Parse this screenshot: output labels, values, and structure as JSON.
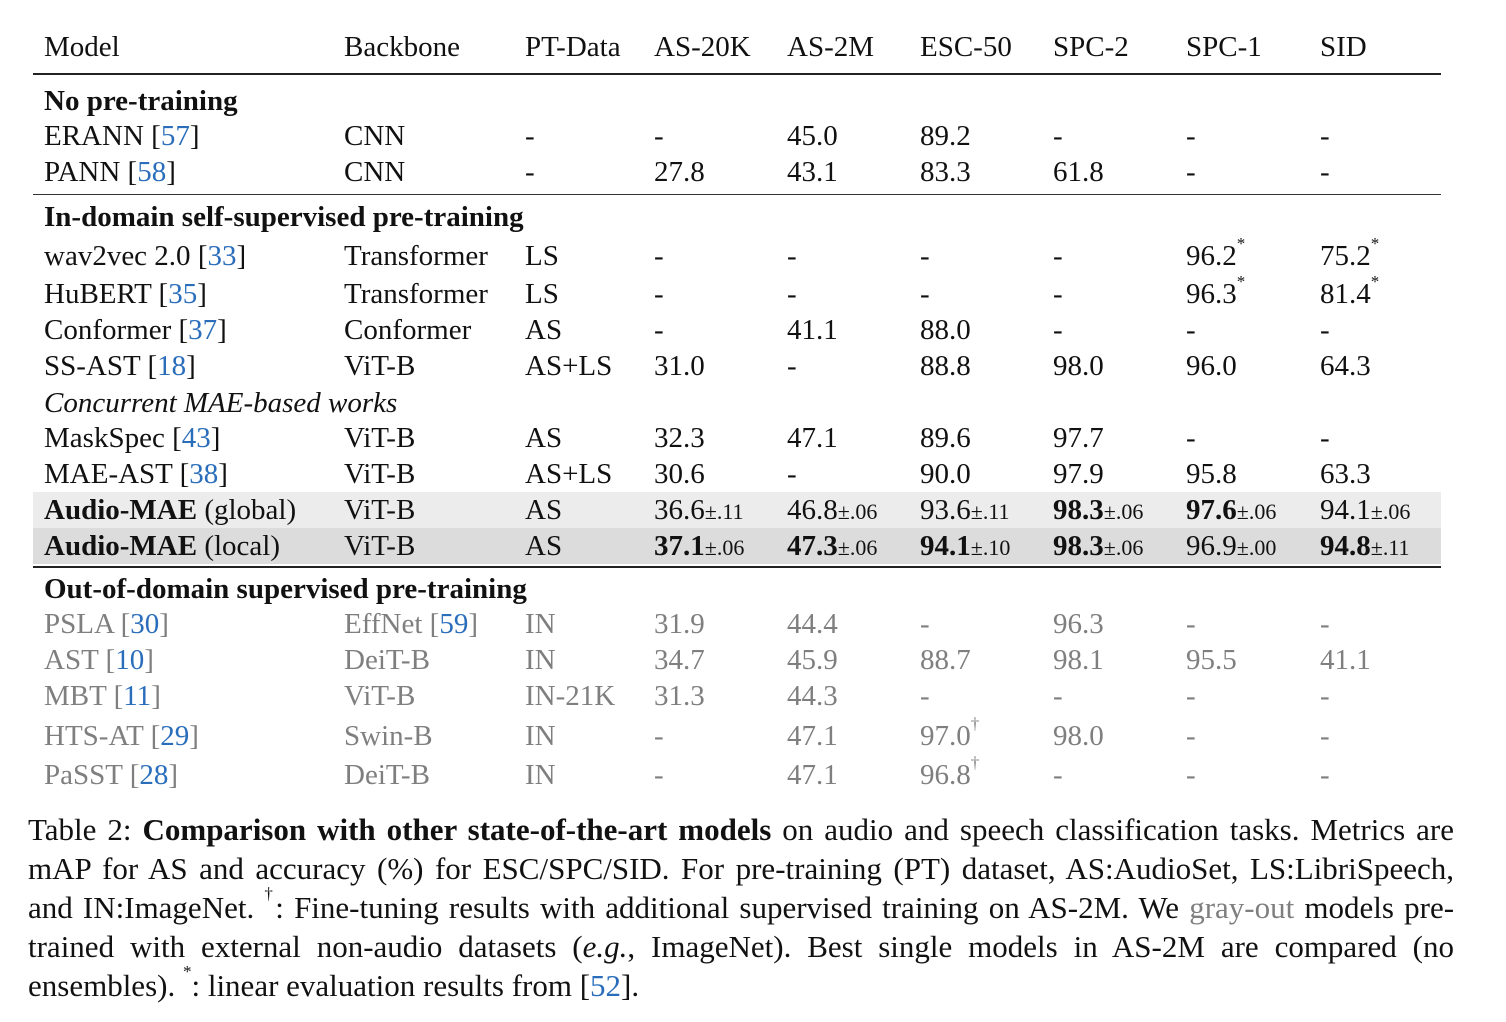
{
  "colors": {
    "link": "#2a6ebb",
    "gray_text": "#7f7f7f",
    "shade_global": "#ececec",
    "shade_local": "#dcdcdc"
  },
  "table": {
    "headers": [
      "Model",
      "Backbone",
      "PT-Data",
      "AS-20K",
      "AS-2M",
      "ESC-50",
      "SPC-2",
      "SPC-1",
      "SID"
    ],
    "rows": [
      {
        "type": "group",
        "label": "No pre-training"
      },
      {
        "type": "row",
        "model": "ERANN",
        "ref": "57",
        "backbone": "CNN",
        "pt": "-",
        "vals": [
          "-",
          "45.0",
          "89.2",
          "-",
          "-",
          "-"
        ]
      },
      {
        "type": "row",
        "model": "PANN",
        "ref": "58",
        "backbone": "CNN",
        "pt": "-",
        "vals": [
          "27.8",
          "43.1",
          "83.3",
          "61.8",
          "-",
          "-"
        ]
      },
      {
        "type": "group",
        "label": "In-domain self-supervised pre-training"
      },
      {
        "type": "row",
        "model": "wav2vec 2.0",
        "ref": "33",
        "backbone": "Transformer",
        "pt": "LS",
        "vals": [
          "-",
          "-",
          "-",
          "-",
          {
            "v": "96.2",
            "sup": "*"
          },
          {
            "v": "75.2",
            "sup": "*"
          }
        ]
      },
      {
        "type": "row",
        "model": "HuBERT",
        "ref": "35",
        "backbone": "Transformer",
        "pt": "LS",
        "vals": [
          "-",
          "-",
          "-",
          "-",
          {
            "v": "96.3",
            "sup": "*"
          },
          {
            "v": "81.4",
            "sup": "*"
          }
        ]
      },
      {
        "type": "row",
        "model": "Conformer",
        "ref": "37",
        "backbone": "Conformer",
        "pt": "AS",
        "vals": [
          "-",
          "41.1",
          "88.0",
          "-",
          "-",
          "-"
        ]
      },
      {
        "type": "row",
        "model": "SS-AST",
        "ref": "18",
        "backbone": "ViT-B",
        "pt": "AS+LS",
        "vals": [
          "31.0",
          "-",
          "88.8",
          "98.0",
          "96.0",
          "64.3"
        ]
      },
      {
        "type": "subgroup",
        "label": "Concurrent MAE-based works"
      },
      {
        "type": "row",
        "model": "MaskSpec",
        "ref": "43",
        "backbone": "ViT-B",
        "pt": "AS",
        "vals": [
          "32.3",
          "47.1",
          "89.6",
          "97.7",
          "-",
          "-"
        ]
      },
      {
        "type": "row",
        "model": "MAE-AST",
        "ref": "38",
        "backbone": "ViT-B",
        "pt": "AS+LS",
        "vals": [
          "30.6",
          "-",
          "90.0",
          "97.9",
          "95.8",
          "63.3"
        ]
      },
      {
        "type": "row",
        "shade": 1,
        "model": "Audio-MAE",
        "model_bold": true,
        "suffix": "(global)",
        "backbone": "ViT-B",
        "pt": "AS",
        "vals": [
          {
            "v": "36.6",
            "pm": "±.11"
          },
          {
            "v": "46.8",
            "pm": "±.06"
          },
          {
            "v": "93.6",
            "pm": "±.11"
          },
          {
            "v": "98.3",
            "pm": "±.06",
            "b": true
          },
          {
            "v": "97.6",
            "pm": "±.06",
            "b": true
          },
          {
            "v": "94.1",
            "pm": "±.06"
          }
        ]
      },
      {
        "type": "row",
        "shade": 2,
        "model": "Audio-MAE",
        "model_bold": true,
        "suffix": "(local)",
        "backbone": "ViT-B",
        "pt": "AS",
        "vals": [
          {
            "v": "37.1",
            "pm": "±.06",
            "b": true
          },
          {
            "v": "47.3",
            "pm": "±.06",
            "b": true
          },
          {
            "v": "94.1",
            "pm": "±.10",
            "b": true
          },
          {
            "v": "98.3",
            "pm": "±.06",
            "b": true
          },
          {
            "v": "96.9",
            "pm": "±.00"
          },
          {
            "v": "94.8",
            "pm": "±.11",
            "b": true
          }
        ]
      },
      {
        "type": "group",
        "label": "Out-of-domain supervised pre-training"
      },
      {
        "type": "row",
        "gray": true,
        "model": "PSLA",
        "ref": "30",
        "backbone": "EffNet",
        "backbone_ref": "59",
        "pt": "IN",
        "vals": [
          "31.9",
          "44.4",
          "-",
          "96.3",
          "-",
          "-"
        ]
      },
      {
        "type": "row",
        "gray": true,
        "model": "AST",
        "ref": "10",
        "backbone": "DeiT-B",
        "pt": "IN",
        "vals": [
          "34.7",
          "45.9",
          "88.7",
          "98.1",
          "95.5",
          "41.1"
        ]
      },
      {
        "type": "row",
        "gray": true,
        "model": "MBT",
        "ref": "11",
        "backbone": "ViT-B",
        "pt": "IN-21K",
        "vals": [
          "31.3",
          "44.3",
          "-",
          "-",
          "-",
          "-"
        ]
      },
      {
        "type": "row",
        "gray": true,
        "model": "HTS-AT",
        "ref": "29",
        "backbone": "Swin-B",
        "pt": "IN",
        "vals": [
          "-",
          "47.1",
          {
            "v": "97.0",
            "sup": "†"
          },
          "98.0",
          "-",
          "-"
        ]
      },
      {
        "type": "row",
        "gray": true,
        "model": "PaSST",
        "ref": "28",
        "backbone": "DeiT-B",
        "pt": "IN",
        "vals": [
          "-",
          "47.1",
          {
            "v": "96.8",
            "sup": "†"
          },
          "-",
          "-",
          "-"
        ]
      }
    ]
  },
  "caption": [
    {
      "t": "Table 2:  "
    },
    {
      "t": "Comparison with other state-of-the-art models",
      "s": "b"
    },
    {
      "t": " on audio and speech classification tasks. Metrics are mAP for AS and accuracy (%) for ESC/SPC/SID. For pre-training (PT) dataset, AS:AudioSet, LS:LibriSpeech, and IN:ImageNet. "
    },
    {
      "t": "†",
      "s": "sup"
    },
    {
      "t": ": Fine-tuning results with additional supervised training on AS-2M. We "
    },
    {
      "t": "gray-out",
      "s": "gray"
    },
    {
      "t": " models pre-trained with external non-audio datasets ("
    },
    {
      "t": "e.g.",
      "s": "i"
    },
    {
      "t": ", ImageNet). Best single models in AS-2M are compared (no ensembles). "
    },
    {
      "t": "*",
      "s": "sup"
    },
    {
      "t": ": linear evaluation results from ["
    },
    {
      "t": "52",
      "s": "ref"
    },
    {
      "t": "]."
    }
  ]
}
